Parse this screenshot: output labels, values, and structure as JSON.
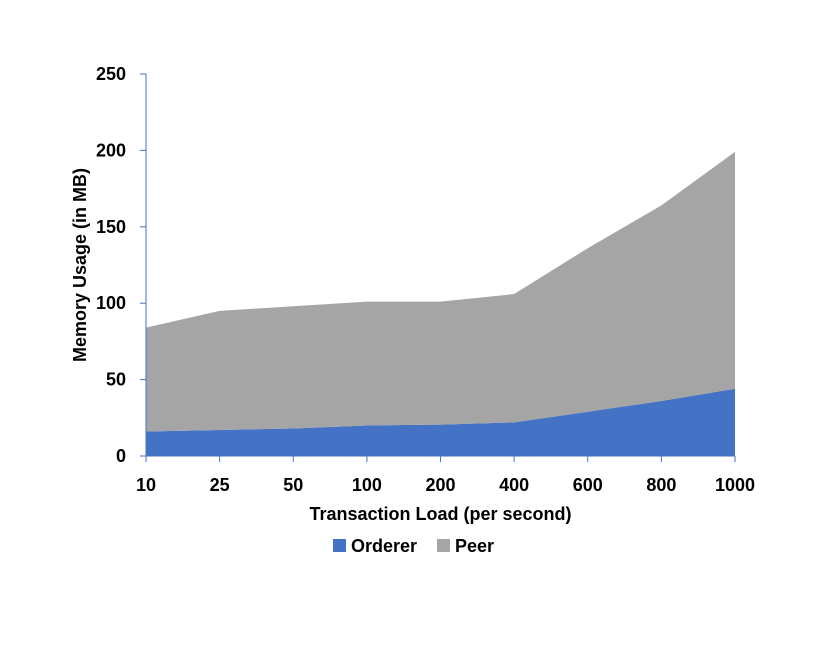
{
  "chart_data": {
    "type": "area",
    "stacked": true,
    "title": "",
    "xlabel": "Transaction Load (per second)",
    "ylabel": "Memory Usage (in MB)",
    "categories": [
      "10",
      "25",
      "50",
      "100",
      "200",
      "400",
      "600",
      "800",
      "1000"
    ],
    "ylim": [
      0,
      250
    ],
    "yticks": [
      0,
      50,
      100,
      150,
      200,
      250
    ],
    "grid": false,
    "legend_position": "bottom",
    "series": [
      {
        "name": "Orderer",
        "color": "#4472c4",
        "values": [
          16,
          17,
          18,
          20,
          20.5,
          22,
          29,
          36,
          44
        ]
      },
      {
        "name": "Peer",
        "color": "#a5a5a5",
        "values": [
          68,
          78,
          80,
          81,
          80.5,
          84,
          107,
          128,
          155
        ]
      }
    ],
    "axis_color": "#4472c4"
  }
}
